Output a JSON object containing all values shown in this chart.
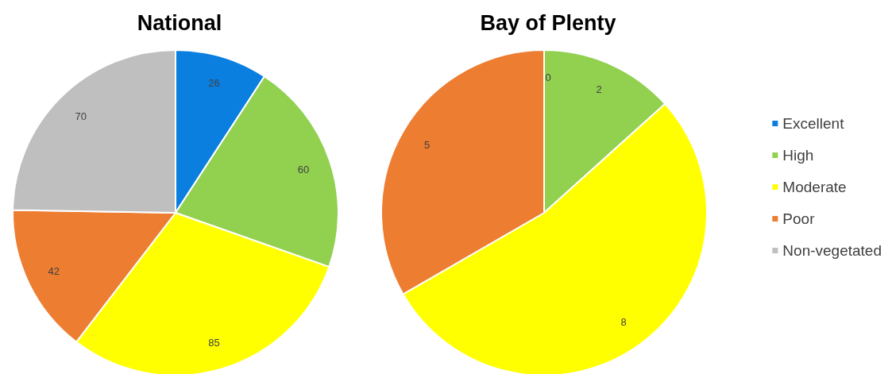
{
  "chart_data": [
    {
      "type": "pie",
      "title": "National",
      "categories": [
        null,
        null,
        null,
        null,
        null
      ],
      "values": [
        26,
        60,
        85,
        42,
        70
      ],
      "colors": [
        "#0a7fe0",
        "#92d050",
        "#ffff00",
        "#ed7d31",
        "#bfbfbf"
      ],
      "data_labels": true
    },
    {
      "type": "pie",
      "title": "Bay of Plenty",
      "categories": [
        "Excellent",
        "High",
        "Moderate",
        "Poor",
        "Non-vegetated"
      ],
      "values": [
        0,
        2,
        8,
        5,
        null
      ],
      "value_labels": [
        "0",
        "2",
        "8",
        "5",
        null
      ],
      "colors": [
        "#0a7fe0",
        "#92d050",
        "#ffff00",
        "#ed7d31",
        "#bfbfbf"
      ],
      "legend": "right"
    }
  ]
}
